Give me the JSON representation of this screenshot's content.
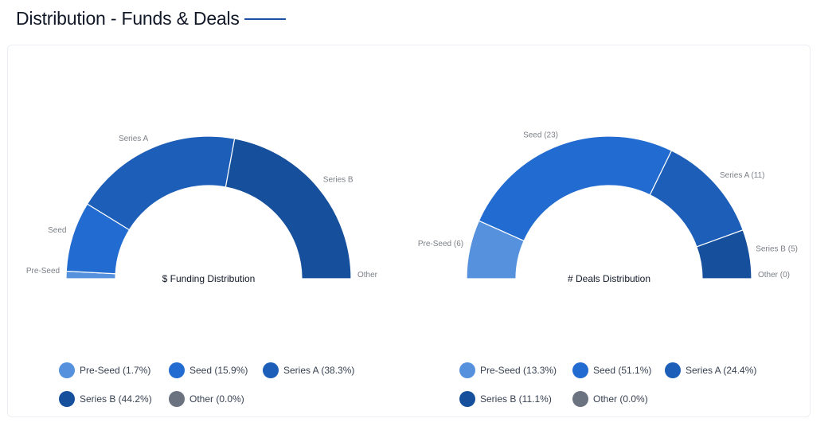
{
  "page": {
    "title": "Distribution - Funds & Deals"
  },
  "colors": {
    "Pre-Seed": "#5591dd",
    "Seed": "#226bd0",
    "Series A": "#1c5eb8",
    "Series B": "#164f9c",
    "Other": "#6b7280"
  },
  "chart_data": [
    {
      "type": "pie",
      "variant": "semi-donut",
      "title": "$ Funding Distribution",
      "categories": [
        "Pre-Seed",
        "Seed",
        "Series A",
        "Series B",
        "Other"
      ],
      "values": [
        1.7,
        15.9,
        38.3,
        44.2,
        0.0
      ],
      "slice_labels": [
        "Pre-Seed",
        "Seed",
        "Series A",
        "Series B",
        "Other"
      ],
      "legend": [
        "Pre-Seed (1.7%)",
        "Seed (15.9%)",
        "Series A (38.3%)",
        "Series B (44.2%)",
        "Other (0.0%)"
      ],
      "legend_position": "bottom"
    },
    {
      "type": "pie",
      "variant": "semi-donut",
      "title": "# Deals Distribution",
      "categories": [
        "Pre-Seed",
        "Seed",
        "Series A",
        "Series B",
        "Other"
      ],
      "values": [
        6,
        23,
        11,
        5,
        0
      ],
      "slice_labels": [
        "Pre-Seed (6)",
        "Seed (23)",
        "Series A (11)",
        "Series B (5)",
        "Other (0)"
      ],
      "legend": [
        "Pre-Seed (13.3%)",
        "Seed (51.1%)",
        "Series A (24.4%)",
        "Series B (11.1%)",
        "Other (0.0%)"
      ],
      "legend_position": "bottom"
    }
  ]
}
